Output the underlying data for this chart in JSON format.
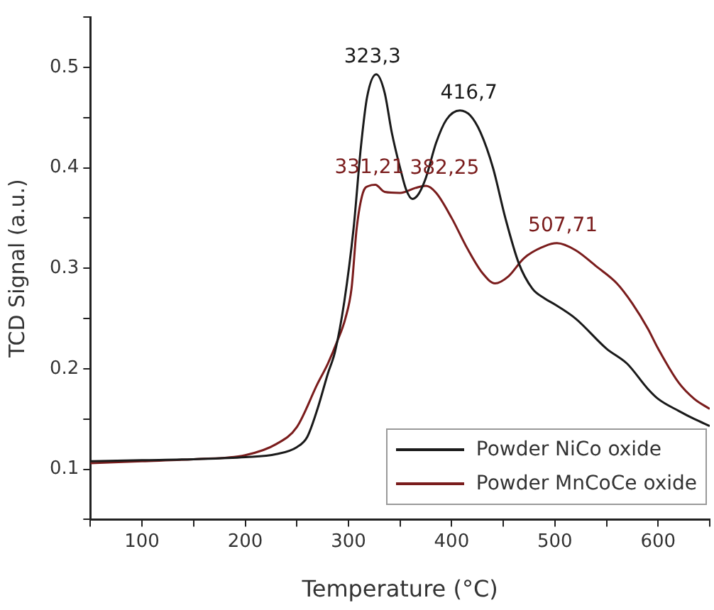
{
  "chart_data": {
    "type": "line",
    "xlabel": "Temperature (°C)",
    "ylabel": "TCD Signal (a.u.)",
    "xlim": [
      50,
      650
    ],
    "xticks": [
      {
        "value": 50,
        "label": null
      },
      100,
      {
        "value": 150,
        "label": null
      },
      200,
      {
        "value": 250,
        "label": null
      },
      300,
      {
        "value": 350,
        "label": null
      },
      400,
      {
        "value": 450,
        "label": null
      },
      500,
      {
        "value": 550,
        "label": null
      },
      600,
      {
        "value": 650,
        "label": null
      }
    ],
    "ylim": [
      0.05,
      0.55
    ],
    "yticks": [
      {
        "value": 0.05,
        "label": null
      },
      0.1,
      {
        "value": 0.15,
        "label": null
      },
      0.2,
      {
        "value": 0.25,
        "label": null
      },
      0.3,
      {
        "value": 0.35,
        "label": null
      },
      0.4,
      {
        "value": 0.45,
        "label": null
      },
      0.5,
      {
        "value": 0.55,
        "label": null
      }
    ],
    "grid": false,
    "legend": "bottom right",
    "marker": "none",
    "line_style": "solid",
    "series": [
      {
        "name": "Powder NiCo oxide",
        "color": "#1a1a1a",
        "x": [
          50,
          100,
          150,
          200,
          230,
          250,
          260,
          270,
          280,
          287,
          296,
          305,
          312,
          318,
          327,
          335,
          342,
          350,
          356,
          362,
          368,
          375,
          385,
          395,
          408,
          418,
          428,
          440,
          452,
          465,
          478,
          490,
          500,
          520,
          550,
          570,
          590,
          600,
          620,
          635,
          650
        ],
        "values": [
          0.108,
          0.109,
          0.11,
          0.112,
          0.115,
          0.122,
          0.132,
          0.16,
          0.195,
          0.217,
          0.267,
          0.34,
          0.42,
          0.47,
          0.493,
          0.475,
          0.435,
          0.4,
          0.378,
          0.369,
          0.374,
          0.39,
          0.425,
          0.448,
          0.457,
          0.452,
          0.435,
          0.4,
          0.35,
          0.305,
          0.28,
          0.27,
          0.264,
          0.25,
          0.22,
          0.205,
          0.18,
          0.17,
          0.158,
          0.15,
          0.143
        ]
      },
      {
        "name": "Powder MnCoCe oxide",
        "color": "#7a1c1c",
        "x": [
          50,
          100,
          150,
          200,
          230,
          250,
          270,
          280,
          289,
          297,
          303,
          308,
          314,
          320,
          326,
          335,
          350,
          365,
          375,
          385,
          400,
          415,
          430,
          442,
          455,
          470,
          490,
          502,
          520,
          540,
          560,
          575,
          590,
          600,
          620,
          635,
          650
        ],
        "values": [
          0.106,
          0.108,
          0.11,
          0.114,
          0.125,
          0.142,
          0.185,
          0.205,
          0.227,
          0.25,
          0.28,
          0.34,
          0.375,
          0.382,
          0.383,
          0.376,
          0.375,
          0.38,
          0.382,
          0.375,
          0.35,
          0.32,
          0.295,
          0.285,
          0.292,
          0.31,
          0.322,
          0.325,
          0.318,
          0.302,
          0.285,
          0.265,
          0.24,
          0.22,
          0.186,
          0.17,
          0.16
        ]
      }
    ],
    "annotations": [
      {
        "text": "323,3",
        "x": 323.3,
        "y": 0.493
      },
      {
        "text": "416,7",
        "x": 416.7,
        "y": 0.457
      },
      {
        "text": "331,21",
        "x": 331.21,
        "y": 0.383
      },
      {
        "text": "382,25",
        "x": 382.25,
        "y": 0.382
      },
      {
        "text": "507,71",
        "x": 507.71,
        "y": 0.325
      }
    ]
  }
}
